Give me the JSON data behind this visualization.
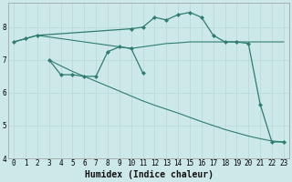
{
  "xlabel": "Humidex (Indice chaleur)",
  "bg_color": "#cce8e8",
  "line_color": "#2e7d6e",
  "xlim": [
    -0.5,
    23.5
  ],
  "ylim": [
    4.0,
    8.75
  ],
  "yticks": [
    4,
    5,
    6,
    7,
    8
  ],
  "xticks": [
    0,
    1,
    2,
    3,
    4,
    5,
    6,
    7,
    8,
    9,
    10,
    11,
    12,
    13,
    14,
    15,
    16,
    17,
    18,
    19,
    20,
    21,
    22,
    23
  ],
  "lines": [
    {
      "x": [
        0,
        1,
        2,
        10,
        11,
        12,
        13,
        14,
        15,
        16,
        17,
        18,
        19,
        20,
        21,
        22,
        23
      ],
      "y": [
        7.55,
        7.65,
        7.75,
        7.95,
        8.0,
        8.3,
        8.22,
        8.38,
        8.45,
        8.3,
        7.75,
        7.55,
        7.55,
        7.5,
        5.65,
        4.5,
        4.5
      ],
      "marker": "D",
      "markersize": 2.0,
      "linewidth": 0.9
    },
    {
      "x": [
        0,
        1,
        2,
        10,
        11,
        12,
        13,
        14,
        15,
        16,
        17,
        18,
        19,
        20,
        21,
        22,
        23
      ],
      "y": [
        7.55,
        7.65,
        7.75,
        7.35,
        7.4,
        7.45,
        7.5,
        7.52,
        7.55,
        7.55,
        7.55,
        7.55,
        7.55,
        7.55,
        7.55,
        7.55,
        7.55
      ],
      "marker": null,
      "markersize": 0,
      "linewidth": 0.8
    },
    {
      "x": [
        3,
        4,
        5,
        6,
        7,
        8,
        9,
        10,
        11
      ],
      "y": [
        7.0,
        6.55,
        6.55,
        6.5,
        6.5,
        7.25,
        7.4,
        7.35,
        6.6
      ],
      "marker": "D",
      "markersize": 2.0,
      "linewidth": 0.9
    },
    {
      "x": [
        3,
        4,
        5,
        6,
        7,
        8,
        9,
        10,
        11,
        12,
        13,
        14,
        15,
        16,
        17,
        18,
        19,
        20,
        21,
        22,
        23
      ],
      "y": [
        7.0,
        6.82,
        6.65,
        6.5,
        6.35,
        6.2,
        6.05,
        5.9,
        5.75,
        5.62,
        5.5,
        5.38,
        5.25,
        5.12,
        5.0,
        4.88,
        4.78,
        4.68,
        4.6,
        4.53,
        4.5
      ],
      "marker": null,
      "markersize": 0,
      "linewidth": 0.8
    }
  ],
  "grid_color": "#b8d8d8",
  "tick_fontsize": 5.5,
  "label_fontsize": 7,
  "title_fontsize": 7
}
